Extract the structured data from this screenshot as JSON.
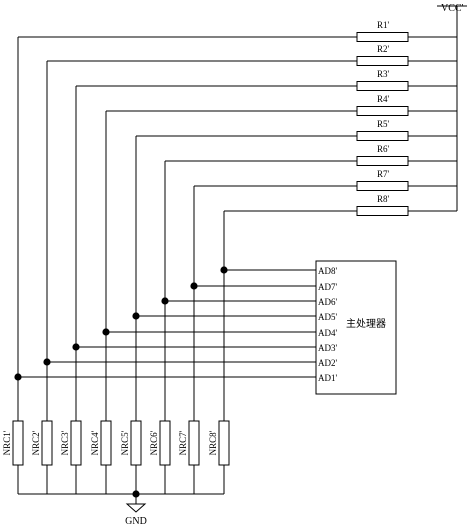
{
  "supply_label": "VCC'",
  "ground_label": "GND",
  "processor_label": "主处理器",
  "pullup_resistors": [
    "R1'",
    "R2'",
    "R3'",
    "R4'",
    "R5'",
    "R6'",
    "R7'",
    "R8'"
  ],
  "sensors": [
    "NRC1'",
    "NRC2'",
    "NRC3'",
    "NRC4'",
    "NRC5'",
    "NRC6'",
    "NRC7'",
    "NRC8'"
  ],
  "processor_pins": [
    "AD1'",
    "AD2'",
    "AD3'",
    "AD4'",
    "AD5'",
    "AD6'",
    "AD7'",
    "AD8'"
  ]
}
